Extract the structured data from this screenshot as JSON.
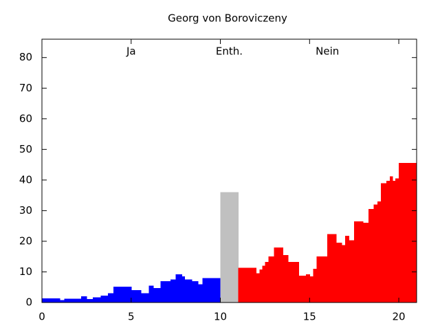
{
  "chart_data": {
    "type": "histogram",
    "title": "Georg von Boroviczeny",
    "series": [
      {
        "name": "Ja",
        "color": "#0000ff",
        "bins": [
          0,
          1,
          1.25,
          2.2,
          2.5,
          2.85,
          3.3,
          3.7,
          4,
          5,
          5.55,
          6,
          6.25,
          6.65,
          7.2,
          7.5,
          7.85,
          8,
          8.4,
          8.5,
          8.75,
          9,
          10
        ],
        "values": [
          1.4,
          0.8,
          1.2,
          2,
          1.1,
          1.7,
          2.3,
          3,
          5.2,
          4,
          3,
          5.5,
          4.7,
          7,
          7.5,
          9.2,
          8.5,
          7.5,
          7,
          7,
          6,
          8
        ]
      },
      {
        "name": "Enth.",
        "color": "#c0c0c0",
        "bins": [
          10,
          11
        ],
        "values": [
          36
        ]
      },
      {
        "name": "Nein",
        "color": "#ff0000",
        "bins": [
          11,
          12,
          12.2,
          12.35,
          12.5,
          12.7,
          13,
          13.5,
          13.8,
          14.1,
          14.4,
          14.8,
          15,
          15.2,
          15.4,
          16,
          16.5,
          16.8,
          17,
          17.2,
          17.5,
          18,
          18.3,
          18.6,
          18.8,
          19,
          19.3,
          19.5,
          19.65,
          19.8,
          20,
          21
        ],
        "values": [
          11.3,
          9.5,
          10.8,
          12,
          13.3,
          15,
          18,
          15.5,
          13.3,
          13.3,
          8.8,
          9.2,
          8.5,
          11,
          15,
          22.3,
          19.5,
          18.8,
          21.8,
          20.3,
          26.5,
          26,
          30.5,
          32,
          33,
          39,
          39.8,
          41.2,
          39.8,
          40.5,
          45.6
        ]
      }
    ],
    "xlim": [
      0,
      21
    ],
    "xticks": [
      0,
      5,
      10,
      15,
      20
    ],
    "ylim": [
      0,
      86
    ],
    "yticks": [
      0,
      10,
      20,
      30,
      40,
      50,
      60,
      70,
      80
    ],
    "grid": false
  }
}
